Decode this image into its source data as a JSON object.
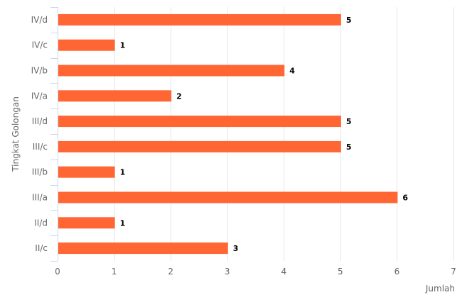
{
  "chart_data": {
    "type": "bar",
    "orientation": "horizontal",
    "categories": [
      "IV/d",
      "IV/c",
      "IV/b",
      "IV/a",
      "III/d",
      "III/c",
      "III/b",
      "III/a",
      "II/d",
      "II/c"
    ],
    "values": [
      5,
      1,
      4,
      2,
      5,
      5,
      1,
      6,
      1,
      3
    ],
    "xlabel": "Jumlah",
    "ylabel": "Tingkat Golongan",
    "xlim": [
      0,
      7
    ],
    "xticks": [
      0,
      1,
      2,
      3,
      4,
      5,
      6,
      7
    ],
    "grid": true,
    "data_labels": true,
    "bar_color": "#ff6633"
  }
}
